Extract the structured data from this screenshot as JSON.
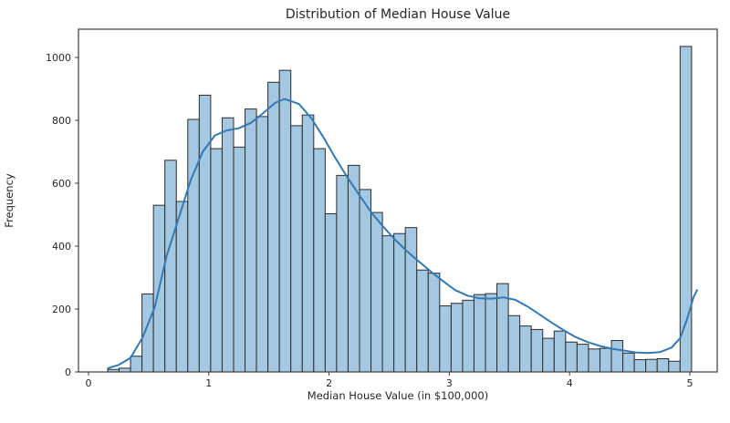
{
  "title": "Distribution of Median House Value",
  "chart_data": {
    "type": "bar",
    "subtype": "histogram_with_kde",
    "title": "Distribution of Median House Value",
    "xlabel": "Median House Value (in $100,000)",
    "ylabel": "Frequency",
    "x_ticks": [
      0,
      1,
      2,
      3,
      4,
      5
    ],
    "y_ticks": [
      0,
      200,
      400,
      600,
      800,
      1000
    ],
    "xlim": [
      -0.083,
      5.23
    ],
    "ylim": [
      0,
      1090
    ],
    "grid": false,
    "legend": "none",
    "bin_start": 0.159,
    "bin_width": 0.0952,
    "frequencies": [
      8,
      12,
      50,
      248,
      530,
      673,
      542,
      803,
      880,
      710,
      808,
      715,
      836,
      812,
      921,
      959,
      783,
      817,
      710,
      503,
      625,
      657,
      580,
      507,
      433,
      440,
      459,
      324,
      314,
      210,
      218,
      228,
      246,
      249,
      281,
      179,
      146,
      135,
      107,
      130,
      95,
      88,
      73,
      75,
      100,
      60,
      39,
      40,
      42,
      34,
      1035
    ],
    "kde": {
      "x": [
        0.16,
        0.25,
        0.35,
        0.45,
        0.55,
        0.65,
        0.75,
        0.85,
        0.95,
        1.05,
        1.15,
        1.25,
        1.35,
        1.45,
        1.55,
        1.63,
        1.75,
        1.85,
        1.95,
        2.05,
        2.15,
        2.25,
        2.35,
        2.45,
        2.55,
        2.65,
        2.75,
        2.85,
        2.95,
        3.05,
        3.15,
        3.25,
        3.35,
        3.45,
        3.55,
        3.65,
        3.75,
        3.85,
        3.95,
        4.05,
        4.15,
        4.25,
        4.35,
        4.45,
        4.55,
        4.65,
        4.75,
        4.85,
        4.92,
        4.98,
        5.03,
        5.06
      ],
      "y": [
        12,
        22,
        45,
        110,
        205,
        370,
        490,
        610,
        700,
        752,
        768,
        775,
        792,
        822,
        855,
        868,
        852,
        808,
        748,
        682,
        620,
        563,
        508,
        462,
        420,
        383,
        350,
        318,
        288,
        260,
        243,
        234,
        233,
        237,
        229,
        208,
        183,
        157,
        133,
        111,
        95,
        83,
        74,
        68,
        62,
        60,
        63,
        78,
        108,
        172,
        237,
        260
      ]
    },
    "colors": {
      "bar_fill": "#a5c8e2",
      "bar_edge": "#2b2b2b",
      "kde_line": "#3379b4",
      "spine": "#3c3c3c",
      "text": "#262626",
      "background": "#ffffff"
    }
  }
}
